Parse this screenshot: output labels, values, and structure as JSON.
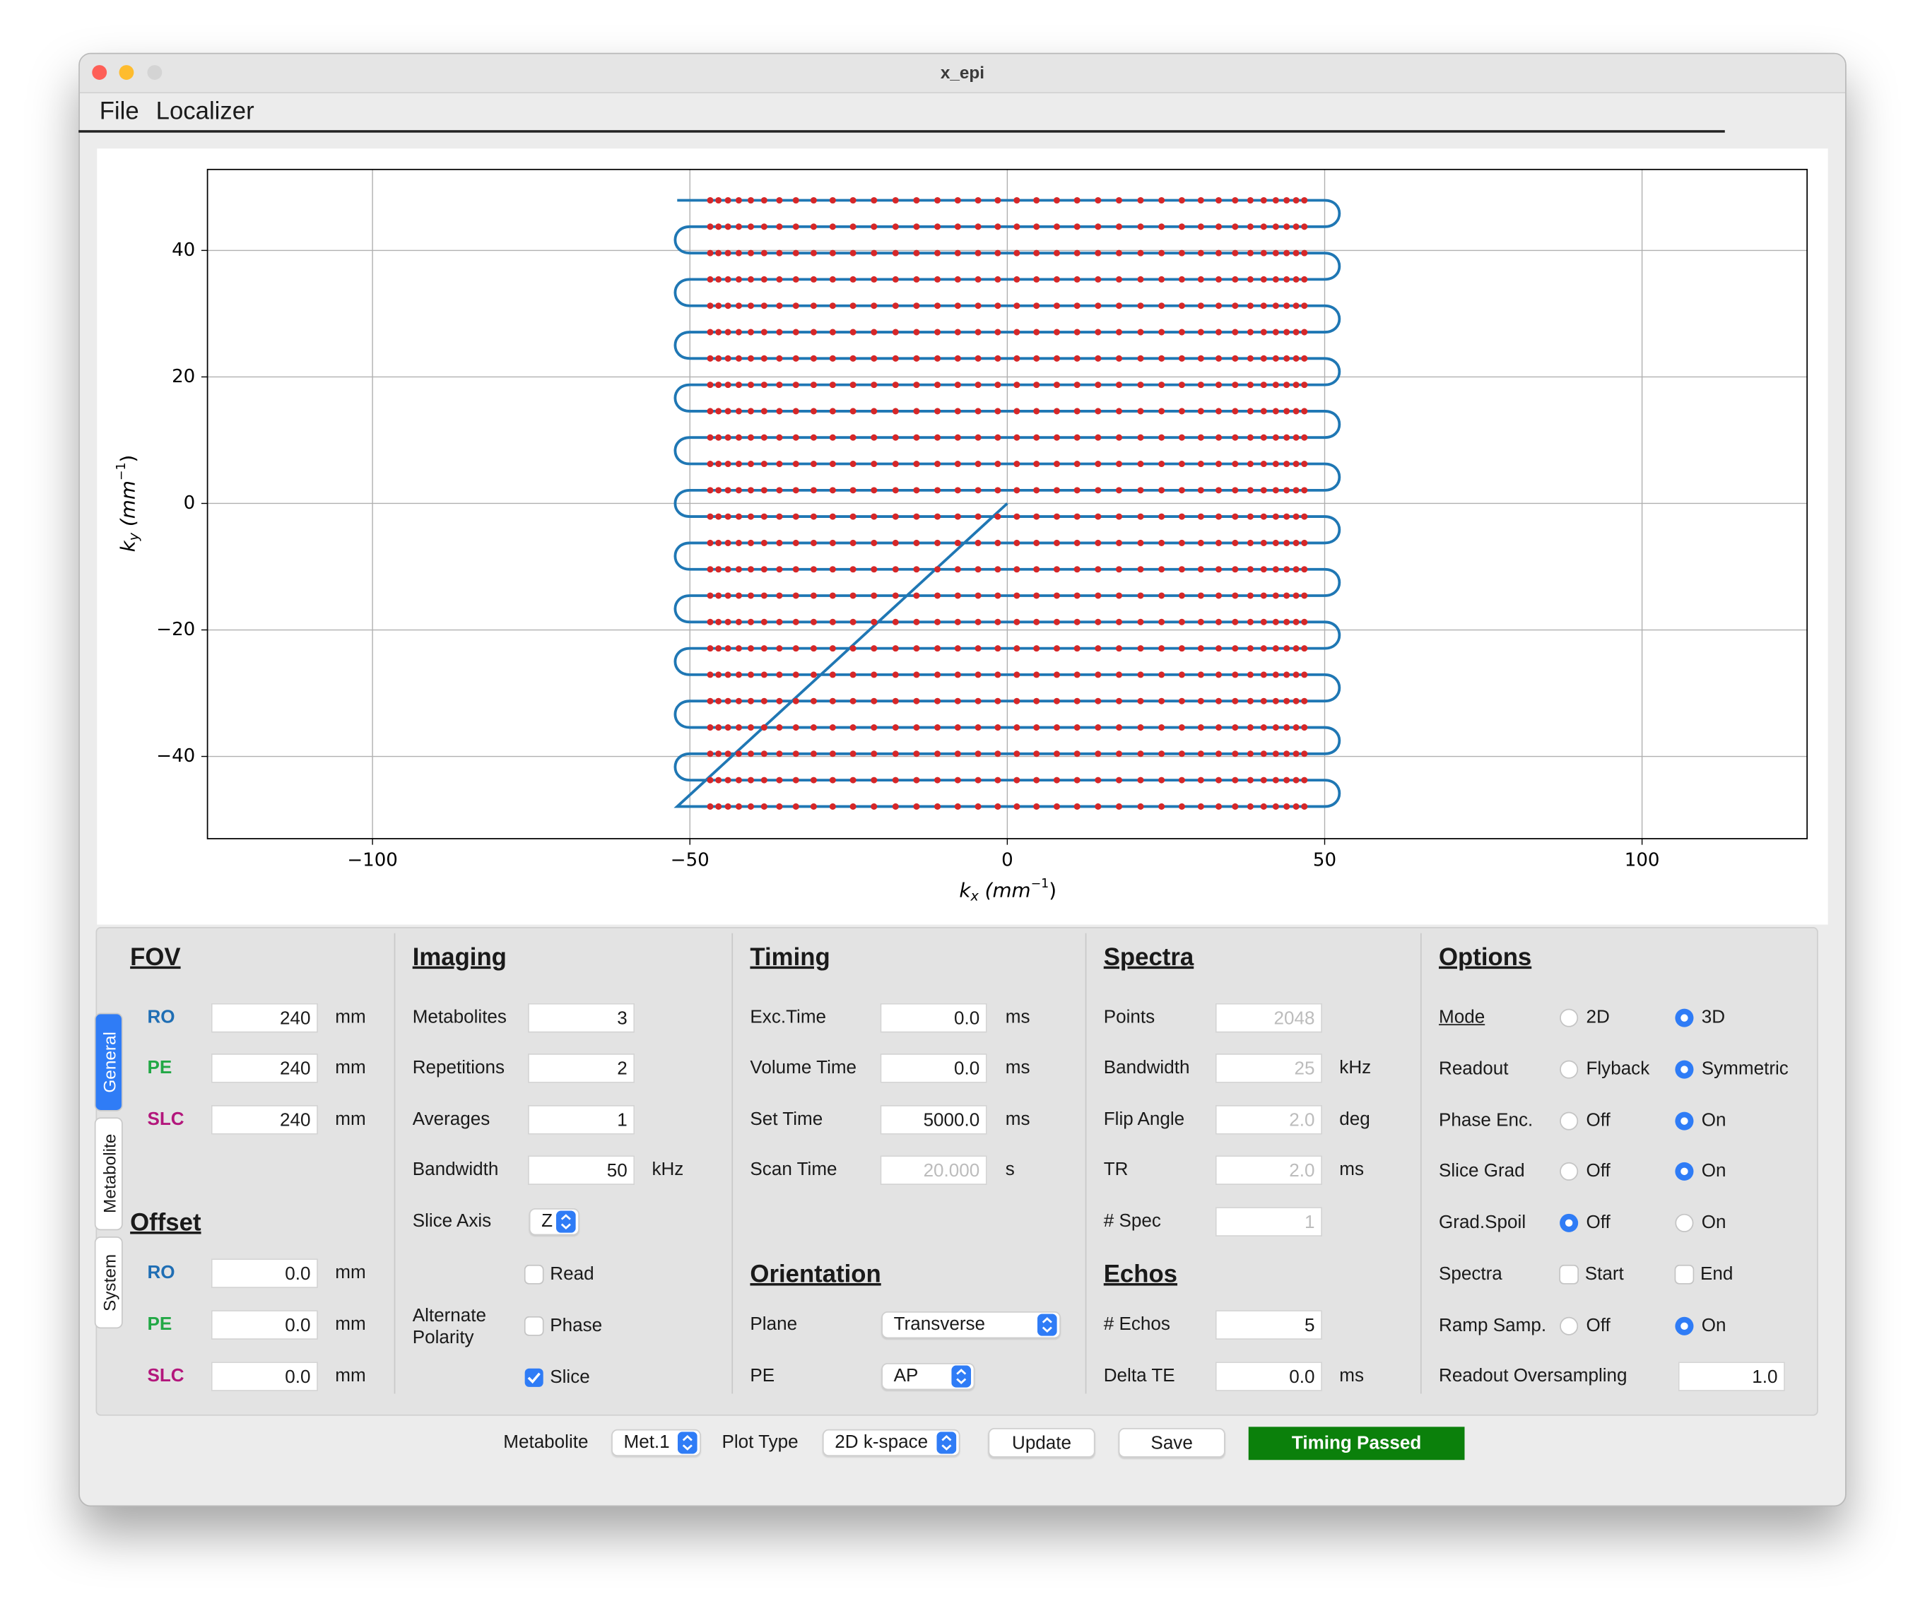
{
  "window": {
    "title": "x_epi",
    "menu": [
      "File",
      "Localizer"
    ]
  },
  "chart_data": {
    "type": "line",
    "grid": true,
    "xlim": [
      -126,
      126
    ],
    "ylim": [
      -53,
      52.8
    ],
    "xticks": [
      {
        "value": -100,
        "label": "−100"
      },
      {
        "value": -50,
        "label": "−50"
      },
      0,
      50,
      100
    ],
    "yticks": [
      {
        "value": -40,
        "label": "−40"
      },
      {
        "value": -20,
        "label": "−20"
      },
      0,
      20,
      40
    ],
    "xlabel": {
      "base": "k",
      "sub": "x",
      "unit": " (mm",
      "sup": "−1",
      "close": ")"
    },
    "ylabel": {
      "base": "k",
      "sub": "y",
      "unit": " (mm",
      "sup": "−1",
      "close": ")"
    },
    "series": [
      {
        "type": "line",
        "color": "#1f77b4",
        "x": [
          0,
          -52,
          50,
          50,
          -50,
          -50,
          50,
          50,
          -50,
          -50,
          50,
          50,
          -50,
          -50,
          50,
          50,
          -50,
          -50,
          50,
          50,
          -50,
          -50,
          50,
          50,
          -50,
          -50,
          50,
          50,
          -50,
          -50,
          50,
          50,
          -50,
          -50,
          50,
          50,
          -50,
          -50,
          50,
          50,
          -50,
          -50,
          50,
          50,
          -50,
          -50,
          50,
          50,
          -52
        ],
        "y": [
          0,
          -47.92,
          -47.92,
          -43.75,
          -43.75,
          -39.58,
          -39.58,
          -35.42,
          -35.42,
          -31.25,
          -31.25,
          -27.08,
          -27.08,
          -22.92,
          -22.92,
          -18.75,
          -18.75,
          -14.58,
          -14.58,
          -10.42,
          -10.42,
          -6.25,
          -6.25,
          -2.08,
          -2.08,
          2.08,
          2.08,
          6.25,
          6.25,
          10.42,
          10.42,
          14.58,
          14.58,
          18.75,
          18.75,
          22.92,
          22.92,
          27.08,
          27.08,
          31.25,
          31.25,
          35.42,
          35.42,
          39.58,
          39.58,
          43.75,
          43.75,
          47.92,
          47.92
        ]
      },
      {
        "type": "grid-samples",
        "color": "#d62728",
        "kx": [
          -46.8,
          -45.5,
          -44.0,
          -42.3,
          -40.4,
          -38.3,
          -35.9,
          -33.3,
          -30.5,
          -27.5,
          -24.3,
          -21.0,
          -17.6,
          -14.3,
          -11.0,
          -7.8,
          -4.6,
          -1.5,
          1.5,
          4.6,
          7.8,
          11.0,
          14.3,
          17.6,
          21.0,
          24.3,
          27.5,
          30.5,
          33.3,
          35.9,
          38.3,
          40.4,
          42.3,
          44.0,
          45.5,
          46.8
        ],
        "ky": [
          -47.92,
          -43.75,
          -39.58,
          -35.42,
          -31.25,
          -27.08,
          -22.92,
          -18.75,
          -14.58,
          -10.42,
          -6.25,
          -2.08,
          2.08,
          6.25,
          10.42,
          14.58,
          18.75,
          22.92,
          27.08,
          31.25,
          35.42,
          39.58,
          43.75,
          47.92
        ]
      }
    ]
  },
  "tabs": {
    "items": [
      "General",
      "Metabolite",
      "System"
    ],
    "selected": 0
  },
  "fov": {
    "title": "FOV",
    "rows": [
      {
        "label": "RO",
        "color": "#1f6eb4",
        "value": "240",
        "unit": "mm"
      },
      {
        "label": "PE",
        "color": "#22a846",
        "value": "240",
        "unit": "mm"
      },
      {
        "label": "SLC",
        "color": "#b3177c",
        "value": "240",
        "unit": "mm"
      }
    ]
  },
  "offset": {
    "title": "Offset",
    "rows": [
      {
        "label": "RO",
        "color": "#1f6eb4",
        "value": "0.0",
        "unit": "mm"
      },
      {
        "label": "PE",
        "color": "#22a846",
        "value": "0.0",
        "unit": "mm"
      },
      {
        "label": "SLC",
        "color": "#b3177c",
        "value": "0.0",
        "unit": "mm"
      }
    ]
  },
  "imaging": {
    "title": "Imaging",
    "rows": [
      {
        "label": "Metabolites",
        "value": "3"
      },
      {
        "label": "Repetitions",
        "value": "2"
      },
      {
        "label": "Averages",
        "value": "1"
      },
      {
        "label": "Bandwidth",
        "value": "50",
        "unit": "kHz"
      },
      {
        "label": "Slice Axis",
        "choice": "Z"
      }
    ],
    "polarity": {
      "label": "Alternate Polarity",
      "options": [
        {
          "label": "Read",
          "checked": false
        },
        {
          "label": "Phase",
          "checked": false
        },
        {
          "label": "Slice",
          "checked": true
        }
      ]
    }
  },
  "timing": {
    "title": "Timing",
    "rows": [
      {
        "label": "Exc.Time",
        "value": "0.0",
        "unit": "ms"
      },
      {
        "label": "Volume Time",
        "value": "0.0",
        "unit": "ms"
      },
      {
        "label": "Set Time",
        "value": "5000.0",
        "unit": "ms"
      },
      {
        "label": "Scan Time",
        "value": "20.000",
        "unit": "s",
        "enabled": false
      }
    ]
  },
  "orientation": {
    "title": "Orientation",
    "rows": [
      {
        "label": "Plane",
        "choice": "Transverse"
      },
      {
        "label": "PE",
        "choice": "AP"
      }
    ]
  },
  "spectra": {
    "title": "Spectra",
    "rows": [
      {
        "label": "Points",
        "value": "2048",
        "enabled": false
      },
      {
        "label": "Bandwidth",
        "value": "25",
        "unit": "kHz",
        "enabled": false
      },
      {
        "label": "Flip Angle",
        "value": "2.0",
        "unit": "deg",
        "enabled": false
      },
      {
        "label": "TR",
        "value": "2.0",
        "unit": "ms",
        "enabled": false
      },
      {
        "label": "# Spec",
        "value": "1",
        "enabled": false
      }
    ]
  },
  "echos": {
    "title": "Echos",
    "rows": [
      {
        "label": "# Echos",
        "value": "5"
      },
      {
        "label": "Delta TE",
        "value": "0.0",
        "unit": "ms"
      }
    ]
  },
  "options": {
    "title": "Options",
    "rows": [
      {
        "label": "Mode",
        "underline": true,
        "options": [
          "2D",
          "3D"
        ],
        "selected": 1
      },
      {
        "label": "Readout",
        "options": [
          "Flyback",
          "Symmetric"
        ],
        "selected": 1
      },
      {
        "label": "Phase Enc.",
        "options": [
          "Off",
          "On"
        ],
        "selected": 1
      },
      {
        "label": "Slice Grad",
        "options": [
          "Off",
          "On"
        ],
        "selected": 1
      },
      {
        "label": "Grad.Spoil",
        "options": [
          "Off",
          "On"
        ],
        "selected": 0
      },
      {
        "label": "Spectra",
        "checks": [
          "Start",
          "End"
        ],
        "checked": [
          false,
          false
        ]
      },
      {
        "label": "Ramp Samp.",
        "options": [
          "Off",
          "On"
        ],
        "selected": 1
      },
      {
        "label": "Readout Oversampling",
        "value": "1.0"
      }
    ]
  },
  "bottom": {
    "metabolite": {
      "label": "Metabolite",
      "choice": "Met.1"
    },
    "plot_type": {
      "label": "Plot Type",
      "choice": "2D k-space"
    },
    "buttons": [
      "Update",
      "Save"
    ],
    "status": "Timing Passed"
  }
}
